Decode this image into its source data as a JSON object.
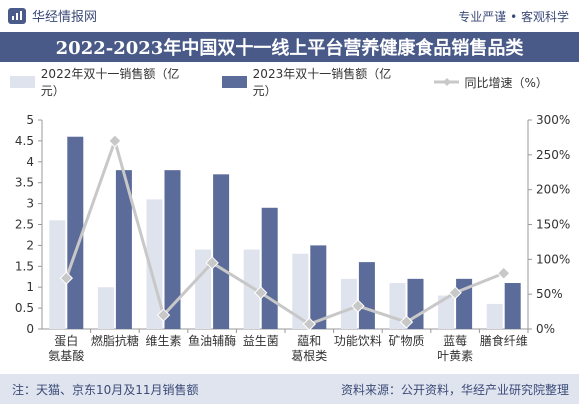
{
  "header": {
    "brand": "华经情报网",
    "slogan": "专业严谨 • 客观科学"
  },
  "footer": {
    "note": "注：天猫、京东10月及11月销售额",
    "source": "资料来源：公开资料，华经产业研究院整理"
  },
  "colors": {
    "bar2022": "#dfe3ee",
    "bar2023": "#5b6b9a",
    "line": "#c8c8c8",
    "title_bg": "#4a5a88"
  },
  "chart_data": {
    "type": "bar",
    "title": "2022-2023年中国双十一线上平台营养健康食品销售品类",
    "categories": [
      "蛋白\n氨基酸",
      "燃脂抗糖",
      "维生素",
      "鱼油辅酶",
      "益生菌",
      "藴和\n葛根类",
      "功能饮料",
      "矿物质",
      "蓝莓\n叶黄素",
      "膳食纤维"
    ],
    "series": [
      {
        "name": "2022年双十一销售额（亿元）",
        "type": "bar",
        "axis": "left",
        "values": [
          2.6,
          1.0,
          3.1,
          1.9,
          1.9,
          1.8,
          1.2,
          1.1,
          0.8,
          0.6
        ]
      },
      {
        "name": "2023年双十一销售额（亿元）",
        "type": "bar",
        "axis": "left",
        "values": [
          4.6,
          3.8,
          3.8,
          3.7,
          2.9,
          2.0,
          1.6,
          1.2,
          1.2,
          1.1
        ]
      },
      {
        "name": "同比增速（%）",
        "type": "line",
        "axis": "right",
        "values": [
          73,
          270,
          20,
          95,
          52,
          7,
          33,
          10,
          52,
          80
        ]
      }
    ],
    "y_left": {
      "min": 0,
      "max": 5,
      "ticks": [
        "0",
        "0.5",
        "1",
        "1.5",
        "2",
        "2.5",
        "3",
        "3.5",
        "4",
        "4.5",
        "5"
      ]
    },
    "y_right": {
      "min": 0,
      "max": 300,
      "ticks": [
        "0%",
        "50%",
        "100%",
        "150%",
        "200%",
        "250%",
        "300%"
      ]
    },
    "grid": false,
    "legend_position": "top"
  }
}
